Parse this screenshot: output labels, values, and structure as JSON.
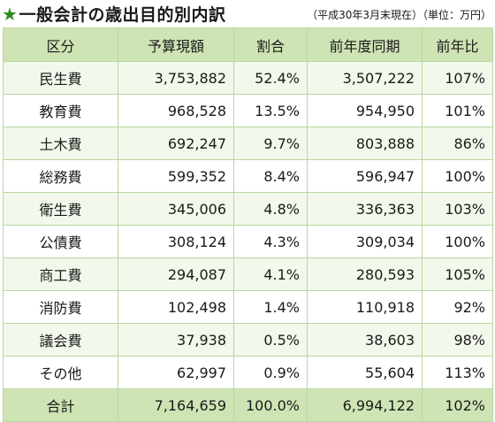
{
  "header": {
    "star": "★",
    "title": "一般会計の歳出目的別内訳",
    "note": "（平成30年3月末現在）（単位：万円）"
  },
  "table": {
    "columns": [
      "区分",
      "予算現額",
      "割合",
      "前年度同期",
      "前年比"
    ],
    "rows": [
      {
        "category": "民生費",
        "budget": "3,753,882",
        "ratio": "52.4%",
        "prev": "3,507,222",
        "yoy": "107%"
      },
      {
        "category": "教育費",
        "budget": "968,528",
        "ratio": "13.5%",
        "prev": "954,950",
        "yoy": "101%"
      },
      {
        "category": "土木費",
        "budget": "692,247",
        "ratio": "9.7%",
        "prev": "803,888",
        "yoy": "86%"
      },
      {
        "category": "総務費",
        "budget": "599,352",
        "ratio": "8.4%",
        "prev": "596,947",
        "yoy": "100%"
      },
      {
        "category": "衛生費",
        "budget": "345,006",
        "ratio": "4.8%",
        "prev": "336,363",
        "yoy": "103%"
      },
      {
        "category": "公債費",
        "budget": "308,124",
        "ratio": "4.3%",
        "prev": "309,034",
        "yoy": "100%"
      },
      {
        "category": "商工費",
        "budget": "294,087",
        "ratio": "4.1%",
        "prev": "280,593",
        "yoy": "105%"
      },
      {
        "category": "消防費",
        "budget": "102,498",
        "ratio": "1.4%",
        "prev": "110,918",
        "yoy": "92%"
      },
      {
        "category": "議会費",
        "budget": "37,938",
        "ratio": "0.5%",
        "prev": "38,603",
        "yoy": "98%"
      },
      {
        "category": "その他",
        "budget": "62,997",
        "ratio": "0.9%",
        "prev": "55,604",
        "yoy": "113%"
      }
    ],
    "total": {
      "category": "合計",
      "budget": "7,164,659",
      "ratio": "100.0%",
      "prev": "6,994,122",
      "yoy": "102%"
    }
  },
  "colors": {
    "accent_star": "#2e8b1e",
    "header_bg": "#cfe4b4",
    "stripe_bg": "#f2f8eb",
    "border": "#b9d7a0"
  }
}
